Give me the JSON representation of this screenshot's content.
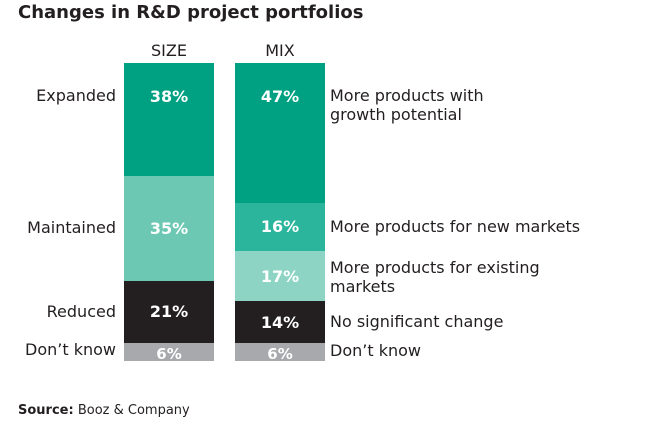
{
  "title": "Changes in R&D project portfolios",
  "source_label": "Source:",
  "source_value": "Booz & Company",
  "chart_data": {
    "type": "bar",
    "stacked": true,
    "title": "Changes in R&D project portfolios",
    "columns": [
      {
        "name": "SIZE",
        "segments": [
          {
            "label": "Expanded",
            "value": 38,
            "color": "#00a183"
          },
          {
            "label": "Maintained",
            "value": 35,
            "color": "#6cc7b3"
          },
          {
            "label": "Reduced",
            "value": 21,
            "color": "#231f20"
          },
          {
            "label": "Don’t know",
            "value": 6,
            "color": "#a7a9ac"
          }
        ]
      },
      {
        "name": "MIX",
        "segments": [
          {
            "label": "More products with growth potential",
            "value": 47,
            "color": "#00a183"
          },
          {
            "label": "More products for new markets",
            "value": 16,
            "color": "#2bb59c"
          },
          {
            "label": "More products for existing markets",
            "value": 17,
            "color": "#8dd4c4"
          },
          {
            "label": "No significant change",
            "value": 14,
            "color": "#231f20"
          },
          {
            "label": "Don’t know",
            "value": 6,
            "color": "#a7a9ac"
          }
        ]
      }
    ],
    "unit": "%"
  }
}
